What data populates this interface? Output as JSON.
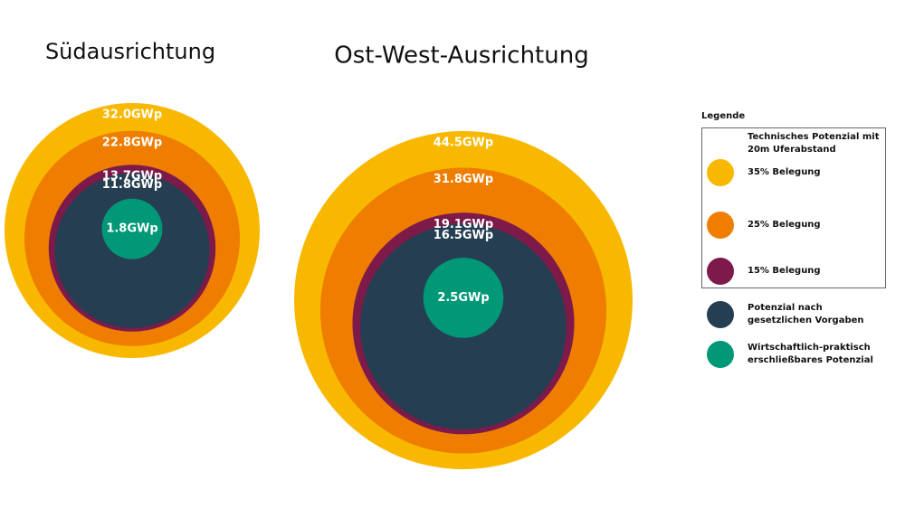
{
  "legend": {
    "title": "Legende",
    "group_title": "Technisches Potenzial mit 20m Uferabstand",
    "names": [
      "35% Belegung",
      "25% Belegung",
      "15% Belegung",
      "Potenzial nach gesetzlichen Vorgaben",
      "Wirtschaftlich-praktisch erschließbares Potenzial"
    ],
    "colors": [
      "#f9b800",
      "#ef7d00",
      "#7d1a4a",
      "#253e52",
      "#009877"
    ]
  },
  "chart_data": [
    {
      "type": "bubble",
      "title": "Südausrichtung",
      "values": [
        32.0,
        22.8,
        13.7,
        11.8,
        1.8
      ],
      "value_labels": [
        "32.0GWp",
        "22.8GWp",
        "13.7GWp",
        "11.8GWp",
        "1.8GWp"
      ]
    },
    {
      "type": "bubble",
      "title": "Ost-West-Ausrichtung",
      "values": [
        44.5,
        31.8,
        19.1,
        16.5,
        2.5
      ],
      "value_labels": [
        "44.5GWp",
        "31.8GWp",
        "19.1GWp",
        "16.5GWp",
        "2.5GWp"
      ]
    }
  ]
}
